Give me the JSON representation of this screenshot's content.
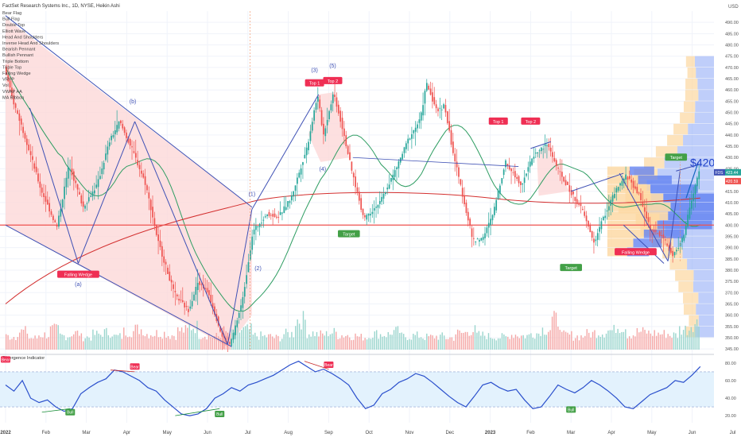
{
  "header": {
    "title": "FactSet Research Systems Inc., 1D, NYSE, Heikin Ashi",
    "indicators": [
      "Bear Flag",
      "Bull Flag",
      "Double Top",
      "Elliott Wave",
      "Head And Shoulders",
      "Inverse Head And Shoulders",
      "Bearish Pennant",
      "Bullish Pennant",
      "Triple Bottom",
      "Triple Top",
      "Falling Wedge",
      "VRVP",
      "Vol",
      "VWAP AA",
      "MA Ribbon"
    ]
  },
  "currency": "USD",
  "ticker_badge": "FDS",
  "price_tags": [
    "423.44",
    "420.59"
  ],
  "callout": "$420",
  "colors": {
    "up": "#26a69a",
    "down": "#ef5350",
    "pattern_line": "#3f51b5",
    "wedge_fill": "#fdd8d8",
    "pattern_label": "#ef2f54",
    "target_label": "#43a047",
    "ma_green": "#2e9d62",
    "ma_red": "#d32f2f",
    "support": "#ef5350",
    "vp_blue": "#8aa6f5",
    "vp_orange": "#fcd7a0",
    "divergence_line": "#2a4fcc",
    "divergence_band": "#e3f2fd"
  },
  "chart_data": [
    {
      "type": "candlestick",
      "title": "FactSet Research Systems Inc., 1D, NYSE, Heikin Ashi",
      "x_ticks": [
        "2022",
        "Feb",
        "Mar",
        "Apr",
        "May",
        "Jun",
        "Jul",
        "Aug",
        "Sep",
        "Oct",
        "Nov",
        "Dec",
        "2023",
        "Feb",
        "Mar",
        "Apr",
        "May",
        "Jun",
        "Jul"
      ],
      "y_ticks": [
        345,
        350,
        355,
        360,
        365,
        370,
        375,
        380,
        385,
        390,
        395,
        400,
        405,
        410,
        415,
        420,
        425,
        430,
        435,
        440,
        445,
        450,
        455,
        460,
        465,
        470,
        475,
        480,
        485,
        490
      ],
      "ylim": [
        344,
        495
      ],
      "price_path": [
        [
          0,
          470
        ],
        [
          0.2,
          456
        ],
        [
          0.5,
          440
        ],
        [
          0.9,
          416
        ],
        [
          1.3,
          399
        ],
        [
          1.6,
          427
        ],
        [
          1.95,
          408
        ],
        [
          2.3,
          418
        ],
        [
          2.6,
          437
        ],
        [
          2.85,
          446
        ],
        [
          3.2,
          432
        ],
        [
          3.5,
          418
        ],
        [
          3.8,
          393
        ],
        [
          4.2,
          370
        ],
        [
          4.55,
          362
        ],
        [
          4.8,
          375
        ],
        [
          5.05,
          370
        ],
        [
          5.4,
          350
        ],
        [
          5.6,
          347
        ],
        [
          5.9,
          367
        ],
        [
          6.15,
          397
        ],
        [
          6.5,
          405
        ],
        [
          6.8,
          404
        ],
        [
          7.1,
          412
        ],
        [
          7.5,
          435
        ],
        [
          7.75,
          458
        ],
        [
          7.9,
          440
        ],
        [
          8.15,
          459
        ],
        [
          8.4,
          441
        ],
        [
          8.6,
          424
        ],
        [
          8.9,
          403
        ],
        [
          9.3,
          410
        ],
        [
          9.7,
          425
        ],
        [
          10.0,
          438
        ],
        [
          10.3,
          447
        ],
        [
          10.45,
          463
        ],
        [
          10.7,
          451
        ],
        [
          10.9,
          453
        ],
        [
          11.1,
          433
        ],
        [
          11.35,
          413
        ],
        [
          11.6,
          393
        ],
        [
          11.85,
          394
        ],
        [
          12.1,
          405
        ],
        [
          12.4,
          428
        ],
        [
          12.6,
          423
        ],
        [
          12.8,
          418
        ],
        [
          13.1,
          431
        ],
        [
          13.45,
          436
        ],
        [
          13.7,
          425
        ],
        [
          14.0,
          415
        ],
        [
          14.3,
          407
        ],
        [
          14.6,
          392
        ],
        [
          14.8,
          402
        ],
        [
          15.1,
          414
        ],
        [
          15.4,
          422
        ],
        [
          15.7,
          414
        ],
        [
          16.0,
          398
        ],
        [
          16.3,
          395
        ],
        [
          16.55,
          386
        ],
        [
          16.8,
          394
        ],
        [
          17.0,
          410
        ],
        [
          17.2,
          423.44
        ]
      ],
      "volume_levels": [
        0.4,
        0.55,
        0.35,
        0.45,
        0.6,
        0.42,
        0.5,
        0.38,
        0.46,
        0.52,
        0.4,
        0.55,
        0.62,
        0.48,
        0.5,
        0.44,
        0.58,
        0.7,
        0.45,
        0.4,
        0.38,
        0.55,
        0.6,
        0.42,
        0.4,
        0.36,
        0.48,
        0.9,
        0.5,
        0.46,
        0.52,
        0.44,
        0.42,
        0.38,
        0.48,
        0.46,
        0.55,
        0.4,
        0.42,
        0.38,
        0.4,
        0.36,
        0.5,
        0.58,
        0.44,
        0.4,
        0.38,
        0.46,
        0.42,
        0.5,
        0.62,
        0.9,
        0.44,
        0.4,
        0.48,
        0.52,
        0.58,
        0.7,
        0.46,
        0.54,
        0.5,
        0.48,
        0.44,
        0.62,
        0.8
      ],
      "support_level": 400,
      "pattern_labels": {
        "falling_wedge": "Falling Wedge",
        "top1": "Top 1",
        "top2": "Top 2",
        "target": "Target",
        "wave_a": "(a)",
        "wave_b": "(b)",
        "wave_1": "(1)",
        "wave_2": "(2)",
        "wave_3": "(3)",
        "wave_4": "(4)",
        "wave_5": "(5)"
      }
    },
    {
      "type": "line",
      "title": "Divergence Indicator",
      "y_ticks": [
        20,
        40,
        60,
        80
      ],
      "ylim": [
        12,
        88
      ],
      "band": [
        30,
        70
      ],
      "values": [
        55,
        48,
        60,
        40,
        35,
        38,
        30,
        25,
        28,
        45,
        52,
        58,
        62,
        72,
        70,
        65,
        60,
        52,
        48,
        38,
        30,
        22,
        20,
        22,
        28,
        40,
        45,
        52,
        48,
        55,
        58,
        62,
        66,
        72,
        78,
        82,
        76,
        70,
        73,
        68,
        62,
        55,
        40,
        28,
        32,
        45,
        50,
        58,
        62,
        68,
        65,
        58,
        50,
        42,
        35,
        30,
        42,
        55,
        58,
        52,
        48,
        50,
        38,
        28,
        30,
        42,
        55,
        50,
        46,
        52,
        60,
        55,
        48,
        40,
        30,
        28,
        36,
        44,
        48,
        52,
        60,
        58,
        66,
        76
      ],
      "labels": {
        "bull": "Bull",
        "bear": "Bear"
      }
    }
  ]
}
